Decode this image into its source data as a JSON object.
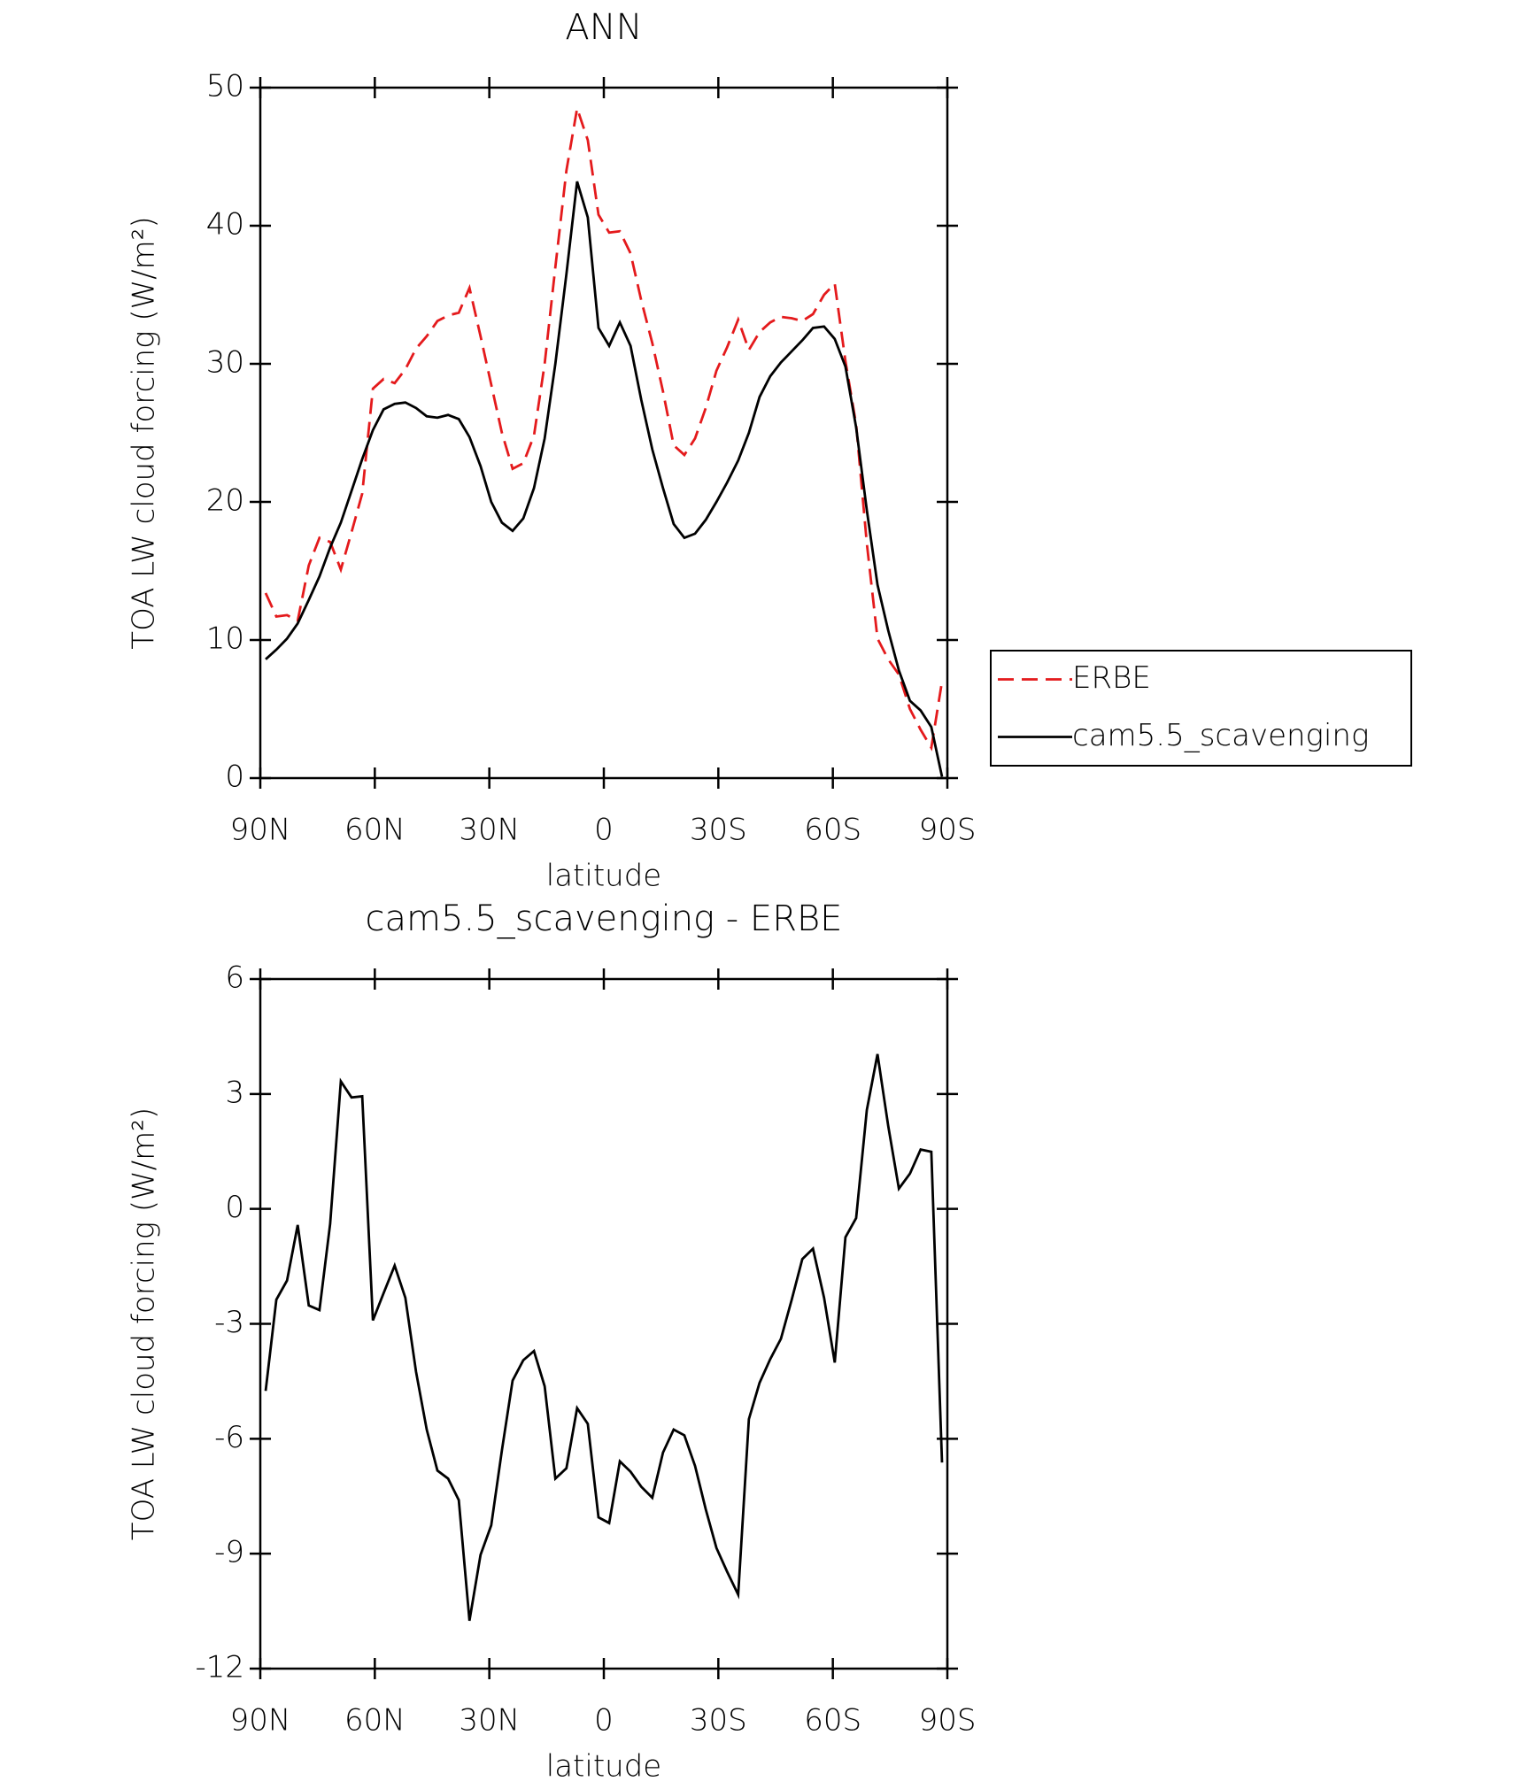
{
  "chart_data": [
    {
      "type": "line",
      "title": "ANN",
      "xlabel": "latitude",
      "ylabel": "TOA LW cloud forcing (W/m²)",
      "x": [
        88.6,
        85.8,
        83.0,
        80.2,
        77.3,
        74.5,
        71.7,
        68.9,
        66.1,
        63.3,
        60.5,
        57.7,
        54.8,
        52.0,
        49.2,
        46.4,
        43.6,
        40.8,
        38.0,
        35.2,
        32.3,
        29.5,
        26.7,
        23.9,
        21.1,
        18.3,
        15.5,
        12.7,
        9.8,
        7.0,
        4.2,
        1.4,
        -1.4,
        -4.2,
        -7.0,
        -9.8,
        -12.7,
        -15.5,
        -18.3,
        -21.1,
        -23.9,
        -26.7,
        -29.5,
        -32.3,
        -35.2,
        -38.0,
        -40.8,
        -43.6,
        -46.4,
        -49.2,
        -52.0,
        -54.8,
        -57.7,
        -60.5,
        -63.3,
        -66.1,
        -68.9,
        -71.7,
        -74.5,
        -77.3,
        -80.2,
        -83.0,
        -85.8,
        -88.6
      ],
      "series": [
        {
          "name": "ERBE",
          "color": "#e41a1c",
          "dash": true,
          "values": [
            13.4,
            11.7,
            11.8,
            11.4,
            15.4,
            17.4,
            17.1,
            15.1,
            17.8,
            20.6,
            28.2,
            28.9,
            28.6,
            29.6,
            31.1,
            32.0,
            33.1,
            33.5,
            33.7,
            35.5,
            32.0,
            28.5,
            25.0,
            22.4,
            22.8,
            24.8,
            30.0,
            37.0,
            44.0,
            48.5,
            46.2,
            40.8,
            39.5,
            39.6,
            38.0,
            34.6,
            31.5,
            28.0,
            24.1,
            23.4,
            24.6,
            26.8,
            29.5,
            31.2,
            33.2,
            31.0,
            32.3,
            33.0,
            33.4,
            33.3,
            33.1,
            33.6,
            35.0,
            35.8,
            30.2,
            25.6,
            17.0,
            10.1,
            8.6,
            7.5,
            5.0,
            3.5,
            2.2,
            7.0
          ]
        },
        {
          "name": "cam5.5_scavenging",
          "color": "#000000",
          "dash": false,
          "values": [
            8.6,
            9.3,
            10.1,
            11.2,
            12.9,
            14.6,
            16.7,
            18.5,
            20.8,
            23.1,
            25.2,
            26.7,
            27.1,
            27.2,
            26.8,
            26.2,
            26.1,
            26.3,
            26.0,
            24.7,
            22.6,
            20.0,
            18.5,
            17.9,
            18.8,
            21.0,
            24.6,
            30.0,
            36.5,
            43.2,
            40.6,
            32.6,
            31.3,
            33.0,
            31.3,
            27.4,
            23.8,
            21.0,
            18.4,
            17.4,
            17.7,
            18.7,
            20.0,
            21.4,
            23.0,
            25.0,
            27.6,
            29.1,
            30.1,
            30.9,
            31.7,
            32.6,
            32.7,
            31.8,
            29.8,
            25.4,
            19.4,
            14.0,
            10.7,
            7.8,
            5.6,
            4.9,
            3.7,
            0.1
          ]
        }
      ],
      "xlim": [
        90,
        -90
      ],
      "xticks": [
        {
          "value": 90,
          "label": "90N"
        },
        {
          "value": 60,
          "label": "60N"
        },
        {
          "value": 30,
          "label": "30N"
        },
        0,
        {
          "value": -30,
          "label": "30S"
        },
        {
          "value": -60,
          "label": "60S"
        },
        {
          "value": -90,
          "label": "90S"
        }
      ],
      "ylim": [
        0,
        50
      ],
      "yticks": [
        0,
        10,
        20,
        30,
        40,
        50
      ],
      "legend": "outside-right"
    },
    {
      "type": "line",
      "title": "cam5.5_scavenging - ERBE",
      "xlabel": "latitude",
      "ylabel": "TOA LW cloud forcing (W/m²)",
      "x": [
        88.6,
        85.8,
        83.0,
        80.2,
        77.3,
        74.5,
        71.7,
        68.9,
        66.1,
        63.3,
        60.5,
        57.7,
        54.8,
        52.0,
        49.2,
        46.4,
        43.6,
        40.8,
        38.0,
        35.2,
        32.3,
        29.5,
        26.7,
        23.9,
        21.1,
        18.3,
        15.5,
        12.7,
        9.8,
        7.0,
        4.2,
        1.4,
        -1.4,
        -4.2,
        -7.0,
        -9.8,
        -12.7,
        -15.5,
        -18.3,
        -21.1,
        -23.9,
        -26.7,
        -29.5,
        -32.3,
        -35.2,
        -38.0,
        -40.8,
        -43.6,
        -46.4,
        -49.2,
        -52.0,
        -54.8,
        -57.7,
        -60.5,
        -63.3,
        -66.1,
        -68.9,
        -71.7,
        -74.5,
        -77.3,
        -80.2,
        -83.0,
        -85.8,
        -88.6
      ],
      "series": [
        {
          "color": "#000000",
          "dash": false,
          "values": [
            -4.75,
            -2.37,
            -1.87,
            -0.42,
            -2.52,
            -2.64,
            -0.39,
            3.33,
            2.91,
            2.94,
            -2.91,
            -2.2,
            -1.48,
            -2.32,
            -4.25,
            -5.76,
            -6.83,
            -7.04,
            -7.6,
            -10.75,
            -9.03,
            -8.26,
            -6.3,
            -4.48,
            -3.95,
            -3.71,
            -4.63,
            -7.04,
            -6.77,
            -5.2,
            -5.61,
            -8.05,
            -8.2,
            -6.59,
            -6.86,
            -7.25,
            -7.54,
            -6.36,
            -5.76,
            -5.91,
            -6.71,
            -7.84,
            -8.85,
            -9.47,
            -10.07,
            -5.49,
            -4.54,
            -3.92,
            -3.39,
            -2.38,
            -1.31,
            -1.04,
            -2.32,
            -4.01,
            -0.74,
            -0.24,
            2.58,
            4.04,
            2.17,
            0.53,
            0.92,
            1.55,
            1.49,
            -6.62
          ]
        }
      ],
      "xlim": [
        90,
        -90
      ],
      "xticks": [
        {
          "value": 90,
          "label": "90N"
        },
        {
          "value": 60,
          "label": "60N"
        },
        {
          "value": 30,
          "label": "30N"
        },
        0,
        {
          "value": -30,
          "label": "30S"
        },
        {
          "value": -60,
          "label": "60S"
        },
        {
          "value": -90,
          "label": "90S"
        }
      ],
      "ylim": [
        -12,
        6
      ],
      "yticks": [
        -12,
        -9,
        -6,
        -3,
        0,
        3,
        6
      ]
    }
  ]
}
